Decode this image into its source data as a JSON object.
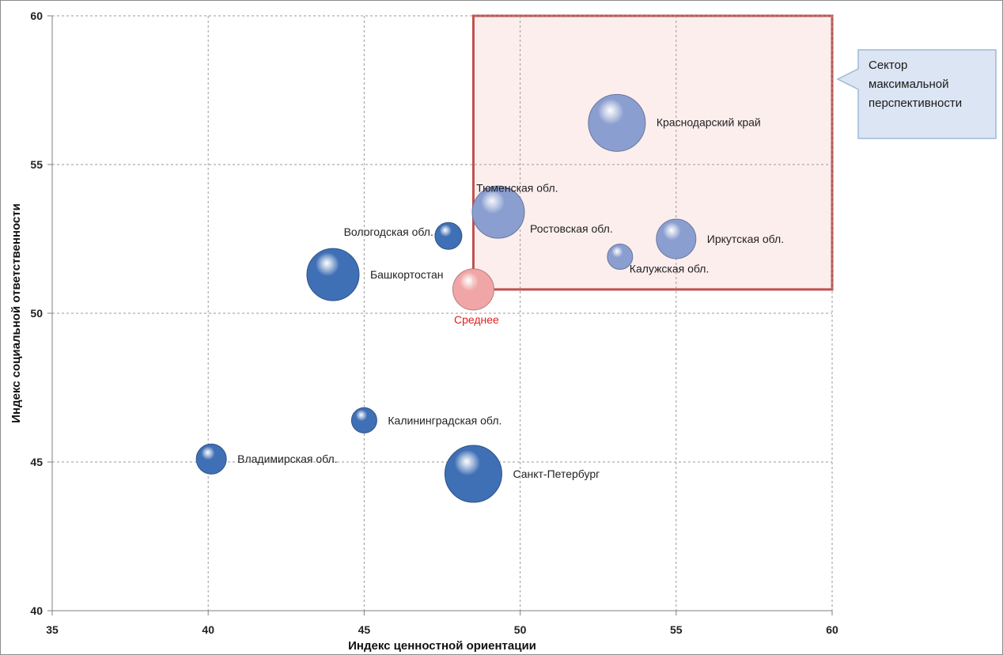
{
  "chart_data": {
    "type": "bubble",
    "xlabel": "Индекс ценностной ориентации",
    "ylabel": "Индекс социальной ответственности",
    "xlim": [
      35,
      60
    ],
    "ylim": [
      40,
      60
    ],
    "x_ticks": [
      35,
      40,
      45,
      50,
      55,
      60
    ],
    "y_ticks": [
      40,
      45,
      50,
      55,
      60
    ],
    "grid": true,
    "points": [
      {
        "label": "Краснодарский край",
        "x": 53.1,
        "y": 56.4,
        "size": 36,
        "color": "#8a9ed0",
        "label_side": "right"
      },
      {
        "label": "Тюменская обл.",
        "x": 49.0,
        "y": 53.6,
        "size": 16,
        "color": "#8a9ed0",
        "label_side": "top"
      },
      {
        "label": "Ростовская обл.",
        "x": 49.3,
        "y": 53.4,
        "size": 33,
        "color": "#8a9ed0",
        "label_side": "right"
      },
      {
        "label": "Иркутская обл.",
        "x": 55.0,
        "y": 52.5,
        "size": 25,
        "color": "#8a9ed0",
        "label_side": "right"
      },
      {
        "label": "Калужская обл.",
        "x": 53.2,
        "y": 51.9,
        "size": 16,
        "color": "#8a9ed0",
        "label_side": "below-right"
      },
      {
        "label": "Вологодская обл.",
        "x": 47.7,
        "y": 52.6,
        "size": 17,
        "color": "#3f6fb5",
        "label_side": "left"
      },
      {
        "label": "Башкортостан",
        "x": 44.0,
        "y": 51.3,
        "size": 33,
        "color": "#3f6fb5",
        "label_side": "right"
      },
      {
        "label": "Среднее",
        "x": 48.5,
        "y": 50.8,
        "size": 26,
        "color": "#f0a6a6",
        "label_side": "below",
        "highlight": true
      },
      {
        "label": "Калининградская обл.",
        "x": 45.0,
        "y": 46.4,
        "size": 16,
        "color": "#3f6fb5",
        "label_side": "right"
      },
      {
        "label": "Владимирская обл.",
        "x": 40.1,
        "y": 45.1,
        "size": 19,
        "color": "#3f6fb5",
        "label_side": "right"
      },
      {
        "label": "Санкт-Петербург",
        "x": 48.5,
        "y": 44.6,
        "size": 36,
        "color": "#3f6fb5",
        "label_side": "right"
      }
    ],
    "sector": {
      "x0": 48.5,
      "x1": 60,
      "y0": 50.8,
      "y1": 60,
      "color": "#c0504d",
      "fill": "#fdeeee"
    },
    "annotation": {
      "lines": [
        "Сектор",
        "максимальной",
        "перспективности"
      ]
    }
  }
}
